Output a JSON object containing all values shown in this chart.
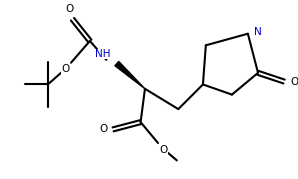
{
  "bg_color": "#ffffff",
  "line_color": "#000000",
  "nh_color": "#0000cd",
  "n_color": "#0000cd",
  "line_width": 1.5,
  "font_size": 7.5,
  "figsize": [
    2.98,
    1.79
  ],
  "dpi": 100,
  "xlim": [
    0,
    10
  ],
  "ylim": [
    0,
    6
  ]
}
